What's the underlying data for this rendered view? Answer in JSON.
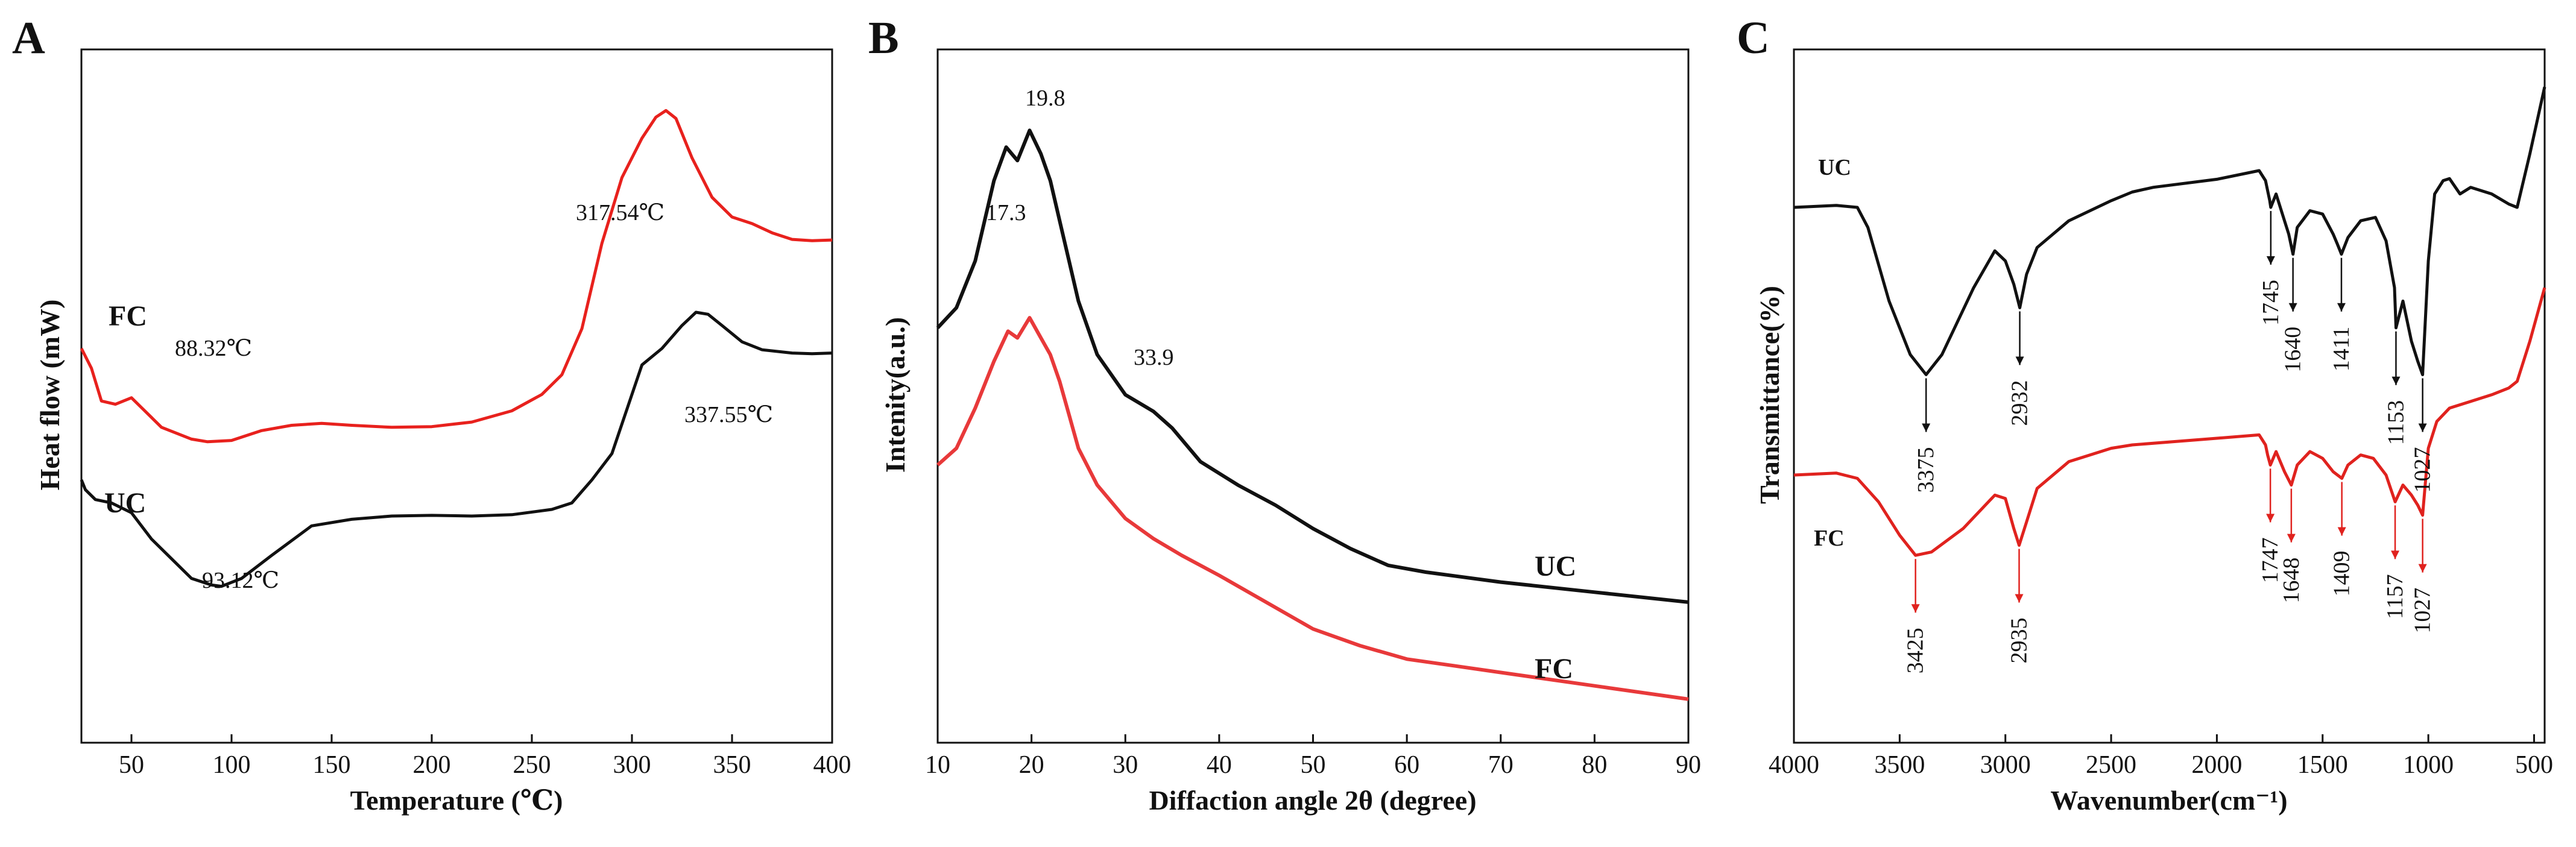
{
  "chart_data": [
    {
      "type": "line",
      "panel": "A",
      "xlabel": "Temperature (℃)",
      "ylabel": "Heat flow (mW)",
      "xlim": [
        25,
        400
      ],
      "ylim": [
        0,
        100
      ],
      "xticks": [
        50,
        100,
        150,
        200,
        250,
        300,
        350,
        400
      ],
      "xtick_labels": [
        "50",
        "100",
        "150",
        "200",
        "250",
        "300",
        "350",
        "400"
      ],
      "series": [
        {
          "name": "FC",
          "color": "#e8211d",
          "points": [
            [
              25,
              60.0
            ],
            [
              30,
              57.0
            ],
            [
              35,
              52.0
            ],
            [
              42,
              51.5
            ],
            [
              50,
              52.5
            ],
            [
              55,
              51.0
            ],
            [
              65,
              48.0
            ],
            [
              80,
              46.2
            ],
            [
              88,
              45.8
            ],
            [
              100,
              46.0
            ],
            [
              115,
              47.5
            ],
            [
              130,
              48.3
            ],
            [
              145,
              48.6
            ],
            [
              160,
              48.3
            ],
            [
              180,
              48.0
            ],
            [
              200,
              48.1
            ],
            [
              220,
              48.8
            ],
            [
              240,
              50.5
            ],
            [
              255,
              53.0
            ],
            [
              265,
              56.0
            ],
            [
              275,
              63.0
            ],
            [
              285,
              76.0
            ],
            [
              295,
              86.0
            ],
            [
              305,
              92.0
            ],
            [
              312,
              95.2
            ],
            [
              317,
              96.2
            ],
            [
              322,
              95.0
            ],
            [
              330,
              89.0
            ],
            [
              340,
              83.0
            ],
            [
              350,
              80.0
            ],
            [
              360,
              79.0
            ],
            [
              370,
              77.6
            ],
            [
              380,
              76.6
            ],
            [
              390,
              76.4
            ],
            [
              400,
              76.5
            ]
          ]
        },
        {
          "name": "UC",
          "color": "#111111",
          "points": [
            [
              25,
              40.0
            ],
            [
              27,
              38.5
            ],
            [
              32,
              37.0
            ],
            [
              40,
              36.5
            ],
            [
              50,
              35.0
            ],
            [
              60,
              31.0
            ],
            [
              70,
              28.0
            ],
            [
              80,
              25.0
            ],
            [
              90,
              24.0
            ],
            [
              95,
              23.8
            ],
            [
              105,
              25.0
            ],
            [
              120,
              28.5
            ],
            [
              140,
              33.0
            ],
            [
              160,
              34.0
            ],
            [
              180,
              34.5
            ],
            [
              200,
              34.6
            ],
            [
              220,
              34.5
            ],
            [
              240,
              34.7
            ],
            [
              260,
              35.5
            ],
            [
              270,
              36.5
            ],
            [
              280,
              40.0
            ],
            [
              290,
              44.0
            ],
            [
              300,
              53.0
            ],
            [
              305,
              57.5
            ],
            [
              315,
              60.0
            ],
            [
              325,
              63.5
            ],
            [
              332,
              65.5
            ],
            [
              338,
              65.2
            ],
            [
              345,
              63.5
            ],
            [
              355,
              61.0
            ],
            [
              365,
              59.8
            ],
            [
              380,
              59.3
            ],
            [
              390,
              59.2
            ],
            [
              400,
              59.3
            ]
          ]
        }
      ],
      "annotations": {
        "fc_peak": "88.32℃",
        "fc_exo": "317.54℃",
        "uc_peak": "93.12℃",
        "uc_exo": "337.55℃"
      }
    },
    {
      "type": "line",
      "panel": "B",
      "xlabel": "Diffaction angle 2θ (degree)",
      "ylabel": "Intenity(a.u.)",
      "xlim": [
        10,
        90
      ],
      "ylim": [
        0,
        100
      ],
      "xticks": [
        10,
        20,
        30,
        40,
        50,
        60,
        70,
        80,
        90
      ],
      "xtick_labels": [
        "10",
        "20",
        "30",
        "40",
        "50",
        "60",
        "70",
        "80",
        "90"
      ],
      "series": [
        {
          "name": "UC",
          "color": "#111111",
          "points": [
            [
              10,
              62.0
            ],
            [
              12,
              65.0
            ],
            [
              14,
              72.0
            ],
            [
              16,
              84.0
            ],
            [
              17.3,
              89.0
            ],
            [
              18.5,
              87.0
            ],
            [
              19.8,
              91.5
            ],
            [
              21,
              88.0
            ],
            [
              22,
              84.0
            ],
            [
              23,
              78.0
            ],
            [
              24,
              72.0
            ],
            [
              25,
              66.0
            ],
            [
              27,
              58.0
            ],
            [
              30,
              52.0
            ],
            [
              33,
              49.5
            ],
            [
              35,
              47.0
            ],
            [
              38,
              42.0
            ],
            [
              42,
              38.5
            ],
            [
              46,
              35.5
            ],
            [
              50,
              32.0
            ],
            [
              54,
              29.0
            ],
            [
              58,
              26.5
            ],
            [
              62,
              25.5
            ],
            [
              70,
              24.0
            ],
            [
              80,
              22.5
            ],
            [
              90,
              21.0
            ]
          ]
        },
        {
          "name": "FC",
          "color": "#e8393a",
          "points": [
            [
              10,
              41.5
            ],
            [
              12,
              44.0
            ],
            [
              14,
              50.0
            ],
            [
              16,
              57.0
            ],
            [
              17.5,
              61.5
            ],
            [
              18.5,
              60.5
            ],
            [
              19.8,
              63.5
            ],
            [
              21,
              60.5
            ],
            [
              22,
              58.0
            ],
            [
              23,
              54.0
            ],
            [
              24,
              49.0
            ],
            [
              25,
              44.0
            ],
            [
              27,
              38.5
            ],
            [
              30,
              33.5
            ],
            [
              33,
              30.5
            ],
            [
              36,
              28.0
            ],
            [
              40,
              25.0
            ],
            [
              45,
              21.0
            ],
            [
              50,
              17.0
            ],
            [
              55,
              14.5
            ],
            [
              60,
              12.5
            ],
            [
              65,
              11.5
            ],
            [
              70,
              10.5
            ],
            [
              80,
              8.5
            ],
            [
              90,
              6.5
            ]
          ]
        }
      ],
      "annotations": {
        "uc_peak_1": "19.8",
        "uc_peak_2": "17.3",
        "uc_peak_3": "33.9"
      }
    },
    {
      "type": "line",
      "panel": "C",
      "xlabel": "Wavenumber(cm⁻¹)",
      "ylabel": "Transmittance(%)",
      "xlim": [
        4000,
        450
      ],
      "ylim": [
        0,
        100
      ],
      "xticks": [
        4000,
        3500,
        3000,
        2500,
        2000,
        1500,
        1000,
        500
      ],
      "xtick_labels": [
        "4000",
        "3500",
        "3000",
        "2500",
        "2000",
        "1500",
        "1000",
        "500"
      ],
      "series": [
        {
          "name": "UC",
          "color": "#111111",
          "points": [
            [
              4000,
              80.0
            ],
            [
              3800,
              80.3
            ],
            [
              3700,
              80.0
            ],
            [
              3650,
              77.0
            ],
            [
              3550,
              66.0
            ],
            [
              3450,
              58.0
            ],
            [
              3375,
              55.0
            ],
            [
              3300,
              58.0
            ],
            [
              3150,
              68.0
            ],
            [
              3050,
              73.5
            ],
            [
              3000,
              72.0
            ],
            [
              2960,
              68.5
            ],
            [
              2932,
              65.0
            ],
            [
              2900,
              70.0
            ],
            [
              2850,
              74.0
            ],
            [
              2700,
              78.0
            ],
            [
              2500,
              81.0
            ],
            [
              2400,
              82.3
            ],
            [
              2300,
              83.0
            ],
            [
              2000,
              84.2
            ],
            [
              1800,
              85.5
            ],
            [
              1770,
              84.0
            ],
            [
              1750,
              81.0
            ],
            [
              1745,
              80.0
            ],
            [
              1720,
              82.0
            ],
            [
              1680,
              78.0
            ],
            [
              1660,
              76.0
            ],
            [
              1640,
              73.0
            ],
            [
              1620,
              77.0
            ],
            [
              1560,
              79.5
            ],
            [
              1500,
              79.0
            ],
            [
              1450,
              76.0
            ],
            [
              1430,
              74.5
            ],
            [
              1411,
              73.0
            ],
            [
              1380,
              75.5
            ],
            [
              1320,
              78.0
            ],
            [
              1250,
              78.5
            ],
            [
              1200,
              75.0
            ],
            [
              1160,
              68.0
            ],
            [
              1153,
              62.0
            ],
            [
              1120,
              66.0
            ],
            [
              1080,
              60.0
            ],
            [
              1050,
              57.0
            ],
            [
              1027,
              55.0
            ],
            [
              1000,
              72.0
            ],
            [
              970,
              82.0
            ],
            [
              930,
              84.0
            ],
            [
              900,
              84.3
            ],
            [
              850,
              82.0
            ],
            [
              800,
              83.0
            ],
            [
              700,
              82.0
            ],
            [
              620,
              80.5
            ],
            [
              580,
              80.0
            ],
            [
              520,
              88.0
            ],
            [
              450,
              98.0
            ]
          ]
        },
        {
          "name": "FC",
          "color": "#e0221e",
          "points": [
            [
              4000,
              40.0
            ],
            [
              3800,
              40.3
            ],
            [
              3700,
              39.5
            ],
            [
              3600,
              36.0
            ],
            [
              3500,
              31.0
            ],
            [
              3425,
              28.0
            ],
            [
              3350,
              28.5
            ],
            [
              3200,
              32.0
            ],
            [
              3050,
              37.0
            ],
            [
              3000,
              36.5
            ],
            [
              2960,
              32.0
            ],
            [
              2935,
              29.5
            ],
            [
              2900,
              33.0
            ],
            [
              2850,
              38.0
            ],
            [
              2700,
              42.0
            ],
            [
              2500,
              44.0
            ],
            [
              2400,
              44.5
            ],
            [
              2200,
              45.0
            ],
            [
              2000,
              45.5
            ],
            [
              1800,
              46.0
            ],
            [
              1770,
              44.5
            ],
            [
              1760,
              43.0
            ],
            [
              1747,
              41.5
            ],
            [
              1720,
              43.5
            ],
            [
              1680,
              40.5
            ],
            [
              1648,
              38.5
            ],
            [
              1620,
              41.5
            ],
            [
              1560,
              43.5
            ],
            [
              1500,
              42.5
            ],
            [
              1450,
              40.5
            ],
            [
              1409,
              39.5
            ],
            [
              1380,
              41.5
            ],
            [
              1320,
              43.0
            ],
            [
              1260,
              42.5
            ],
            [
              1200,
              40.0
            ],
            [
              1157,
              36.0
            ],
            [
              1120,
              38.5
            ],
            [
              1080,
              37.0
            ],
            [
              1050,
              35.5
            ],
            [
              1027,
              34.0
            ],
            [
              1000,
              44.0
            ],
            [
              960,
              48.0
            ],
            [
              900,
              50.0
            ],
            [
              800,
              51.0
            ],
            [
              700,
              52.0
            ],
            [
              620,
              53.0
            ],
            [
              580,
              54.0
            ],
            [
              520,
              60.0
            ],
            [
              450,
              68.0
            ]
          ]
        }
      ],
      "markers": [
        {
          "wavenumber": 3375,
          "label": "3375",
          "series": "UC"
        },
        {
          "wavenumber": 2932,
          "label": "2932",
          "series": "UC"
        },
        {
          "wavenumber": 1745,
          "label": "1745",
          "series": "UC"
        },
        {
          "wavenumber": 1640,
          "label": "1640",
          "series": "UC"
        },
        {
          "wavenumber": 1411,
          "label": "1411",
          "series": "UC"
        },
        {
          "wavenumber": 1153,
          "label": "1153",
          "series": "UC"
        },
        {
          "wavenumber": 1027,
          "label": "1027",
          "series": "UC"
        },
        {
          "wavenumber": 3425,
          "label": "3425",
          "series": "FC"
        },
        {
          "wavenumber": 2935,
          "label": "2935",
          "series": "FC"
        },
        {
          "wavenumber": 1747,
          "label": "1747",
          "series": "FC"
        },
        {
          "wavenumber": 1648,
          "label": "1648",
          "series": "FC"
        },
        {
          "wavenumber": 1409,
          "label": "1409",
          "series": "FC"
        },
        {
          "wavenumber": 1157,
          "label": "1157",
          "series": "FC"
        },
        {
          "wavenumber": 1027,
          "label": "1027",
          "series": "FC"
        }
      ]
    }
  ],
  "panels": {
    "a": "A",
    "b": "B",
    "c": "C"
  },
  "labels": {
    "fc": "FC",
    "uc": "UC"
  }
}
